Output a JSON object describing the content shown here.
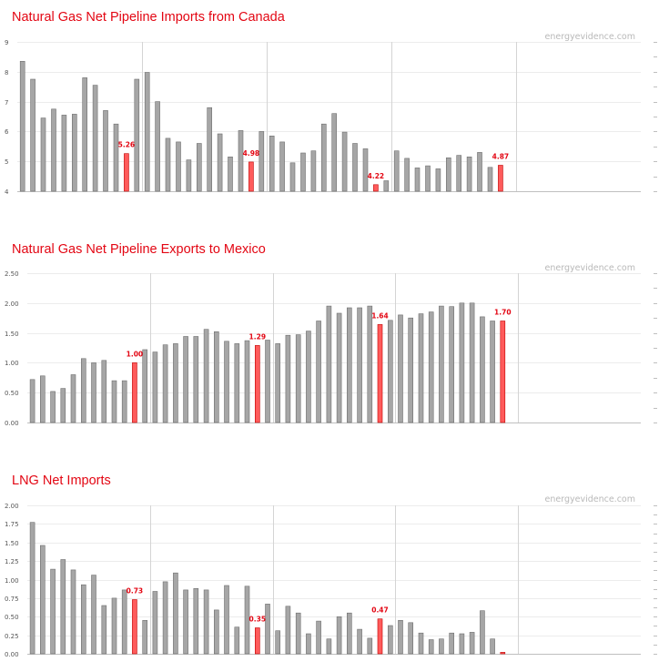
{
  "colors": {
    "title": "#e30613",
    "bar": "#a6a6a6",
    "bar_stroke": "#6e6e6e",
    "highlight_bar": "#ff5b5b",
    "highlight_stroke": "#c00000",
    "label": "#e30613",
    "grid": "#ececec",
    "separator": "#d4d4d4",
    "axis": "#bfbfbf"
  },
  "watermark": "energyevidence.com",
  "chart_data": [
    {
      "type": "bar",
      "title": "Natural Gas Net Pipeline Imports from Canada",
      "ylim": [
        4,
        9
      ],
      "yticks": [
        "4",
        "5",
        "6",
        "7",
        "8",
        "9"
      ],
      "grid": true,
      "total_slots": 60,
      "separators_after": [
        12,
        24,
        36,
        48
      ],
      "values": [
        8.35,
        7.75,
        6.45,
        6.75,
        6.55,
        6.58,
        7.8,
        7.55,
        6.7,
        6.25,
        5.26,
        7.75,
        7.98,
        7.0,
        5.77,
        5.65,
        5.05,
        5.6,
        6.8,
        5.92,
        5.15,
        6.03,
        4.98,
        6.0,
        5.85,
        5.65,
        4.95,
        5.28,
        5.35,
        6.25,
        6.6,
        5.98,
        5.6,
        5.42,
        4.22,
        4.35,
        5.35,
        5.1,
        4.78,
        4.85,
        4.75,
        5.12,
        5.2,
        5.15,
        5.3,
        4.8,
        4.87
      ],
      "highlights": [
        10,
        22,
        34,
        46
      ],
      "data_labels": [
        {
          "index": 10,
          "text": "5.26"
        },
        {
          "index": 22,
          "text": "4.98"
        },
        {
          "index": 34,
          "text": "4.22"
        },
        {
          "index": 46,
          "text": "4.87"
        }
      ]
    },
    {
      "type": "bar",
      "title": "Natural Gas Net Pipeline Exports to Mexico",
      "ylim": [
        0,
        2.5
      ],
      "yticks": [
        "0.00",
        "0.50",
        "1.00",
        "1.50",
        "2.00",
        "2.50"
      ],
      "grid": true,
      "total_slots": 60,
      "separators_after": [
        12,
        24,
        36,
        48
      ],
      "values": [
        0.72,
        0.78,
        0.52,
        0.57,
        0.8,
        1.07,
        1.0,
        1.04,
        0.7,
        0.7,
        1.0,
        1.22,
        1.18,
        1.3,
        1.32,
        1.44,
        1.44,
        1.56,
        1.52,
        1.36,
        1.32,
        1.37,
        1.29,
        1.38,
        1.32,
        1.46,
        1.47,
        1.53,
        1.7,
        1.95,
        1.83,
        1.92,
        1.92,
        1.95,
        1.64,
        1.71,
        1.8,
        1.75,
        1.82,
        1.85,
        1.95,
        1.94,
        2.0,
        2.0,
        1.77,
        1.7,
        1.7
      ],
      "highlights": [
        10,
        22,
        34,
        46
      ],
      "data_labels": [
        {
          "index": 10,
          "text": "1.00"
        },
        {
          "index": 22,
          "text": "1.29"
        },
        {
          "index": 34,
          "text": "1.64"
        },
        {
          "index": 46,
          "text": "1.70"
        }
      ]
    },
    {
      "type": "bar",
      "title": "LNG Net Imports",
      "ylim": [
        0,
        2.0
      ],
      "yticks": [
        "0.00",
        "0.25",
        "0.50",
        "0.75",
        "1.00",
        "1.25",
        "1.50",
        "1.75",
        "2.00"
      ],
      "grid": true,
      "total_slots": 60,
      "separators_after": [
        12,
        24,
        36,
        48
      ],
      "values": [
        1.77,
        1.46,
        1.14,
        1.27,
        1.13,
        0.93,
        1.06,
        0.65,
        0.75,
        0.86,
        0.73,
        0.45,
        0.84,
        0.97,
        1.09,
        0.86,
        0.88,
        0.86,
        0.59,
        0.92,
        0.36,
        0.91,
        0.35,
        0.67,
        0.31,
        0.64,
        0.55,
        0.27,
        0.44,
        0.2,
        0.5,
        0.55,
        0.33,
        0.21,
        0.47,
        0.38,
        0.45,
        0.42,
        0.28,
        0.19,
        0.2,
        0.28,
        0.27,
        0.29,
        0.58,
        0.2,
        0.02
      ],
      "highlights": [
        10,
        22,
        34,
        46
      ],
      "data_labels": [
        {
          "index": 10,
          "text": "0.73"
        },
        {
          "index": 22,
          "text": "0.35"
        },
        {
          "index": 34,
          "text": "0.47"
        }
      ]
    }
  ]
}
